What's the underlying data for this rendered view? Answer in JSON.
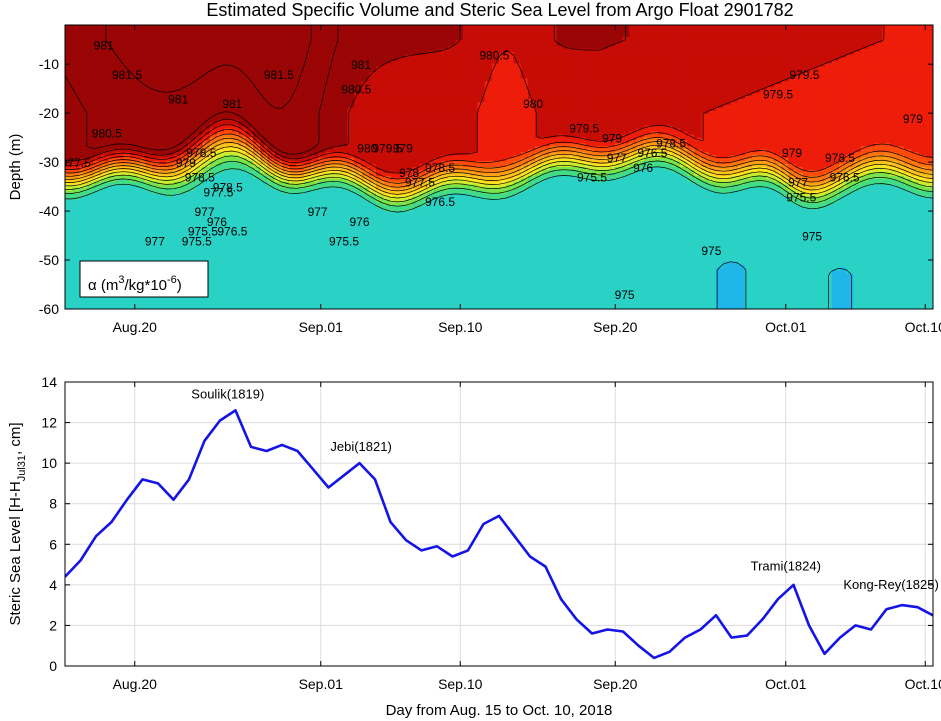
{
  "title": "Estimated Specific Volume and Steric Sea Level from Argo Float 2901782",
  "colors": {
    "ramp": [
      "#19d7f2",
      "#2ad2c6",
      "#43dc86",
      "#78e44a",
      "#cdee2e",
      "#ffe41e",
      "#ffc21a",
      "#ff9d16",
      "#ff7710",
      "#ff4a0c",
      "#ee1d0a",
      "#c70c06",
      "#9a0505"
    ],
    "deep_patch": "#1fb7e9",
    "line": "#1414e6",
    "grid": "#dcdcdc"
  },
  "chart_data": [
    {
      "type": "heatmap",
      "title": "Estimated Specific Volume and Steric Sea Level from Argo Float 2901782",
      "ylabel": "Depth (m)",
      "xlabel": "",
      "colorbar_label": "α (m³/kg*10⁻⁶)",
      "colorbar_label_parts": {
        "prefix": "α (m",
        "sup1": "3",
        "mid": "/kg*10",
        "sup2": "-6",
        "suffix": ")"
      },
      "ylim": [
        -60,
        -2
      ],
      "yticks": [
        -10,
        -20,
        -30,
        -40,
        -50,
        -60
      ],
      "xlim": [
        15.5,
        71.5
      ],
      "xticks": [
        {
          "day": 20,
          "label": "Aug.20"
        },
        {
          "day": 32,
          "label": "Sep.01"
        },
        {
          "day": 41,
          "label": "Sep.10"
        },
        {
          "day": 51,
          "label": "Sep.20"
        },
        {
          "day": 62,
          "label": "Oct.01"
        },
        {
          "day": 71,
          "label": "Oct.10"
        }
      ],
      "levels": [
        975,
        975.5,
        976,
        976.5,
        977,
        977.5,
        978,
        978.5,
        979,
        979.5,
        980,
        980.5,
        981,
        981.5
      ],
      "contour_label_text": [
        "981",
        "981.5",
        "981",
        "981",
        "981.5",
        "981",
        "980.5",
        "980.5",
        "980",
        "979.5",
        "979.5",
        "979",
        "980.5",
        "977.5",
        "980",
        "979.5",
        "979",
        "978.5",
        "979.5",
        "979",
        "978.5",
        "977.5",
        "978",
        "978.5",
        "977",
        "976",
        "976.5",
        "975.5",
        "976",
        "975.5",
        "976.5",
        "977",
        "976.5",
        "975.5",
        "977",
        "975",
        "975",
        "975",
        "979",
        "978.5",
        "976.5",
        "977",
        "975.5",
        "978.5",
        "979",
        "978.5",
        "977.5",
        "977",
        "976",
        "975.5"
      ],
      "contour_labels": [
        {
          "day": 18.0,
          "depth": -7,
          "text": "981"
        },
        {
          "day": 19.5,
          "depth": -13,
          "text": "981.5"
        },
        {
          "day": 22.8,
          "depth": -18,
          "text": "981"
        },
        {
          "day": 26.3,
          "depth": -19,
          "text": "981"
        },
        {
          "day": 29.3,
          "depth": -13,
          "text": "981.5"
        },
        {
          "day": 34.6,
          "depth": -11,
          "text": "981"
        },
        {
          "day": 34.3,
          "depth": -16,
          "text": "980.5"
        },
        {
          "day": 43.2,
          "depth": -9,
          "text": "980.5"
        },
        {
          "day": 45.7,
          "depth": -19,
          "text": "980"
        },
        {
          "day": 61.5,
          "depth": -17,
          "text": "979.5"
        },
        {
          "day": 63.2,
          "depth": -13,
          "text": "979.5"
        },
        {
          "day": 70.2,
          "depth": -22,
          "text": "979"
        },
        {
          "day": 18.2,
          "depth": -25,
          "text": "980.5"
        },
        {
          "day": 16.2,
          "depth": -31,
          "text": "977.5"
        },
        {
          "day": 35.0,
          "depth": -28,
          "text": "980"
        },
        {
          "day": 36.3,
          "depth": -28,
          "text": "979.5"
        },
        {
          "day": 37.3,
          "depth": -28,
          "text": "979"
        },
        {
          "day": 39.7,
          "depth": -32,
          "text": "978.5"
        },
        {
          "day": 49.0,
          "depth": -24,
          "text": "979.5"
        },
        {
          "day": 50.8,
          "depth": -26,
          "text": "979"
        },
        {
          "day": 54.6,
          "depth": -27,
          "text": "978.5"
        },
        {
          "day": 38.4,
          "depth": -35,
          "text": "977.5"
        },
        {
          "day": 37.7,
          "depth": -33,
          "text": "978"
        },
        {
          "day": 26.0,
          "depth": -36,
          "text": "978.5"
        },
        {
          "day": 51.1,
          "depth": -30,
          "text": "977"
        },
        {
          "day": 52.8,
          "depth": -32,
          "text": "976"
        },
        {
          "day": 53.4,
          "depth": -29,
          "text": "976.5"
        },
        {
          "day": 49.5,
          "depth": -34,
          "text": "975.5"
        },
        {
          "day": 34.5,
          "depth": -43,
          "text": "976"
        },
        {
          "day": 33.5,
          "depth": -47,
          "text": "975.5"
        },
        {
          "day": 39.7,
          "depth": -39,
          "text": "976.5"
        },
        {
          "day": 31.8,
          "depth": -41,
          "text": "977"
        },
        {
          "day": 26.3,
          "depth": -45,
          "text": "976.5"
        },
        {
          "day": 24.0,
          "depth": -47,
          "text": "975.5"
        },
        {
          "day": 21.3,
          "depth": -47,
          "text": "977"
        },
        {
          "day": 57.2,
          "depth": -49,
          "text": "975"
        },
        {
          "day": 63.7,
          "depth": -46,
          "text": "975"
        },
        {
          "day": 51.6,
          "depth": -58,
          "text": "975"
        },
        {
          "day": 62.4,
          "depth": -29,
          "text": "979"
        },
        {
          "day": 65.5,
          "depth": -30,
          "text": "978.5"
        },
        {
          "day": 65.8,
          "depth": -34,
          "text": "976.5"
        },
        {
          "day": 62.8,
          "depth": -35,
          "text": "977"
        },
        {
          "day": 63.0,
          "depth": -38,
          "text": "975.5"
        },
        {
          "day": 24.2,
          "depth": -34,
          "text": "978.5"
        },
        {
          "day": 23.3,
          "depth": -31,
          "text": "979"
        },
        {
          "day": 24.3,
          "depth": -29,
          "text": "978.5"
        },
        {
          "day": 25.4,
          "depth": -37,
          "text": "977.5"
        },
        {
          "day": 24.5,
          "depth": -41,
          "text": "977"
        },
        {
          "day": 25.3,
          "depth": -43,
          "text": "976"
        },
        {
          "day": 24.4,
          "depth": -45,
          "text": "975.5"
        }
      ]
    },
    {
      "type": "line",
      "xlabel": "Day from Aug. 15 to Oct. 10, 2018",
      "ylabel_parts": {
        "prefix": "Steric Sea Level [H-H",
        "sub": "Jul31",
        "suffix": ", cm]"
      },
      "xlim": [
        15.5,
        71.5
      ],
      "ylim": [
        0,
        14
      ],
      "yticks": [
        0,
        2,
        4,
        6,
        8,
        10,
        12,
        14
      ],
      "xticks": [
        {
          "day": 20,
          "label": "Aug.20"
        },
        {
          "day": 32,
          "label": "Sep.01"
        },
        {
          "day": 41,
          "label": "Sep.10"
        },
        {
          "day": 51,
          "label": "Sep.20"
        },
        {
          "day": 62,
          "label": "Oct.01"
        },
        {
          "day": 71,
          "label": "Oct.10"
        }
      ],
      "grid": true,
      "series": [
        {
          "x": [
            15.5,
            16.5,
            17.5,
            18.5,
            19.5,
            20.5,
            21.5,
            22.5,
            23.5,
            24.5,
            25.5,
            26.5,
            27.5,
            28.5,
            29.5,
            30.5,
            31.5,
            32.5,
            33.5,
            34.5,
            35.5,
            36.5,
            37.5,
            38.5,
            39.5,
            40.5,
            41.5,
            42.5,
            43.5,
            44.5,
            45.5,
            46.5,
            47.5,
            48.5,
            49.5,
            50.5,
            51.5,
            52.5,
            53.5,
            54.5,
            55.5,
            56.5,
            57.5,
            58.5,
            59.5,
            60.5,
            61.5,
            62.5,
            63.5,
            64.5,
            65.5,
            66.5,
            67.5,
            68.5,
            69.5,
            70.5,
            71.5
          ],
          "y": [
            4.4,
            5.2,
            6.4,
            7.1,
            8.2,
            9.2,
            9.0,
            8.2,
            9.2,
            11.1,
            12.1,
            12.6,
            10.8,
            10.6,
            10.9,
            10.6,
            9.7,
            8.8,
            9.4,
            10.0,
            9.2,
            7.1,
            6.2,
            5.7,
            5.9,
            5.4,
            5.7,
            7.0,
            7.4,
            6.4,
            5.4,
            4.9,
            3.3,
            2.3,
            1.6,
            1.8,
            1.7,
            1.0,
            0.4,
            0.7,
            1.4,
            1.8,
            2.5,
            1.4,
            1.5,
            2.3,
            3.3,
            4.0,
            2.0,
            0.6,
            1.4,
            2.0,
            1.8,
            2.8,
            3.0,
            2.9,
            2.5
          ]
        }
      ],
      "annotations": [
        {
          "day": 26.0,
          "value": 12.9,
          "text": "Soulik(1819)"
        },
        {
          "day": 34.6,
          "value": 10.3,
          "text": "Jebi(1821)"
        },
        {
          "day": 62.0,
          "value": 4.4,
          "text": "Trami(1824)"
        },
        {
          "day": 68.8,
          "value": 3.5,
          "text": "Kong-Rey(1825)"
        }
      ]
    }
  ]
}
